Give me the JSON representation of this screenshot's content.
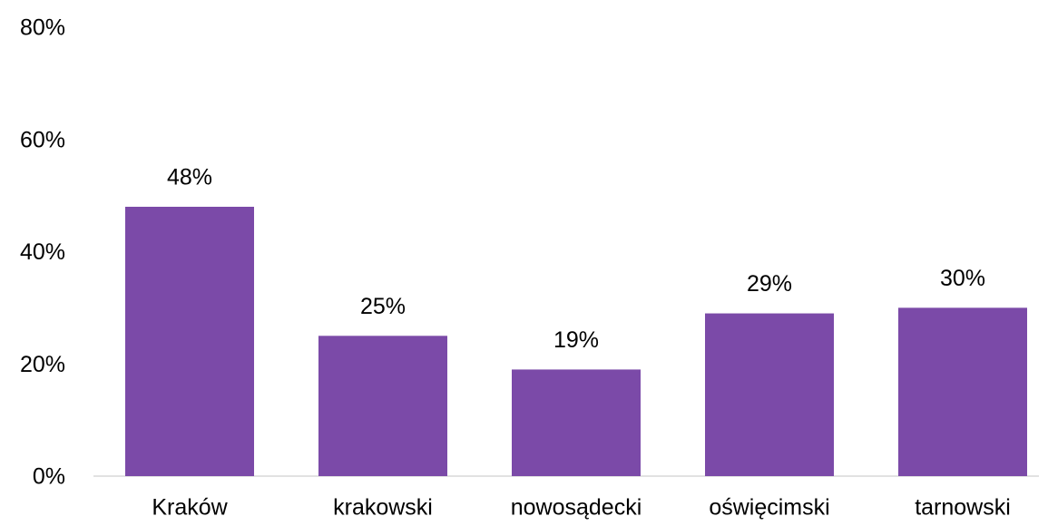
{
  "chart_data": {
    "type": "bar",
    "categories": [
      "Kraków",
      "krakowski",
      "nowosądecki",
      "oświęcimski",
      "tarnowski"
    ],
    "values": [
      48,
      25,
      19,
      29,
      30
    ],
    "value_labels": [
      "48%",
      "25%",
      "19%",
      "29%",
      "30%"
    ],
    "color": "#7b4aa8",
    "ylim": [
      0,
      80
    ],
    "yticks": [
      {
        "value": 0,
        "label": "0%"
      },
      {
        "value": 20,
        "label": "20%"
      },
      {
        "value": 40,
        "label": "40%"
      },
      {
        "value": 60,
        "label": "60%"
      },
      {
        "value": 80,
        "label": "80%"
      }
    ],
    "grid": false
  }
}
